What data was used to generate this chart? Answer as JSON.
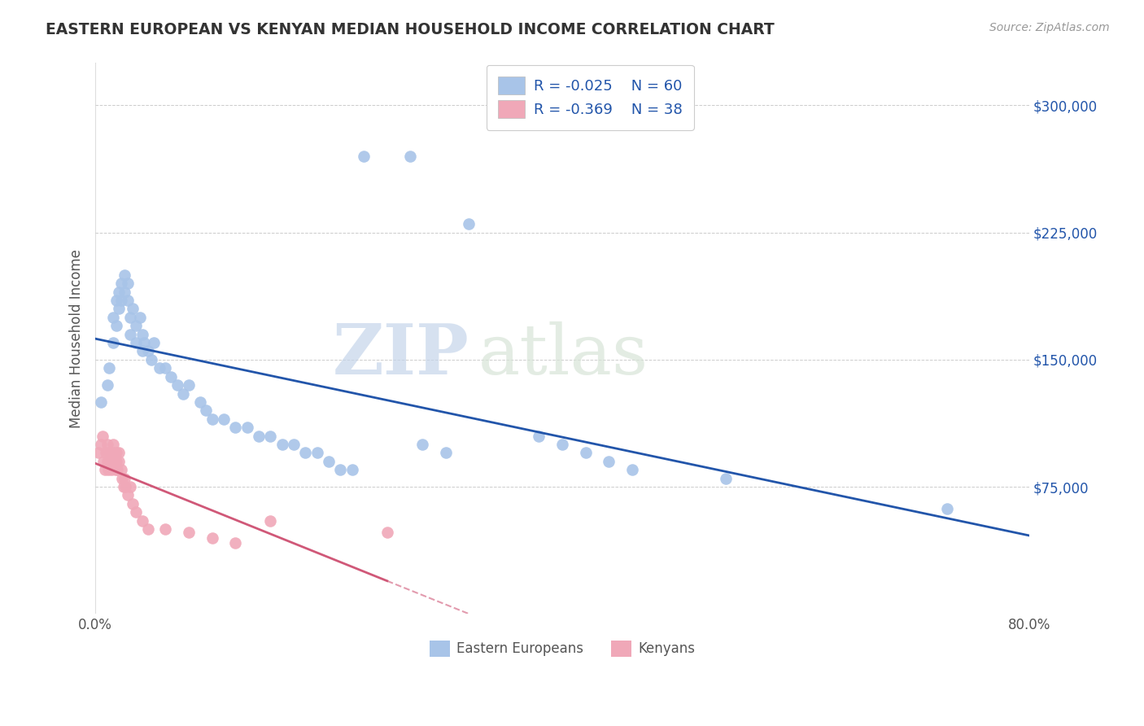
{
  "title": "EASTERN EUROPEAN VS KENYAN MEDIAN HOUSEHOLD INCOME CORRELATION CHART",
  "source": "Source: ZipAtlas.com",
  "ylabel": "Median Household Income",
  "xlim": [
    0.0,
    0.8
  ],
  "ylim": [
    0,
    325000
  ],
  "yticks": [
    0,
    75000,
    150000,
    225000,
    300000
  ],
  "ytick_labels": [
    "",
    "$75,000",
    "$150,000",
    "$225,000",
    "$300,000"
  ],
  "xticks": [
    0.0,
    0.8
  ],
  "xtick_labels": [
    "0.0%",
    "80.0%"
  ],
  "legend_r1": "R = -0.025",
  "legend_n1": "N = 60",
  "legend_r2": "R = -0.369",
  "legend_n2": "N = 38",
  "legend_label1": "Eastern Europeans",
  "legend_label2": "Kenyans",
  "watermark_zip": "ZIP",
  "watermark_atlas": "atlas",
  "blue_color": "#a8c4e8",
  "pink_color": "#f0a8b8",
  "line_blue": "#2255aa",
  "line_pink": "#d05878",
  "background": "#ffffff",
  "grid_color": "#cccccc",
  "text_color": "#555555",
  "blue_text_color": "#2255aa",
  "blue_scatter": [
    [
      0.005,
      125000
    ],
    [
      0.01,
      135000
    ],
    [
      0.012,
      145000
    ],
    [
      0.015,
      160000
    ],
    [
      0.015,
      175000
    ],
    [
      0.018,
      185000
    ],
    [
      0.018,
      170000
    ],
    [
      0.02,
      190000
    ],
    [
      0.02,
      180000
    ],
    [
      0.022,
      195000
    ],
    [
      0.022,
      185000
    ],
    [
      0.025,
      200000
    ],
    [
      0.025,
      190000
    ],
    [
      0.028,
      195000
    ],
    [
      0.028,
      185000
    ],
    [
      0.03,
      175000
    ],
    [
      0.03,
      165000
    ],
    [
      0.032,
      180000
    ],
    [
      0.035,
      170000
    ],
    [
      0.035,
      160000
    ],
    [
      0.038,
      175000
    ],
    [
      0.04,
      165000
    ],
    [
      0.04,
      155000
    ],
    [
      0.042,
      160000
    ],
    [
      0.045,
      155000
    ],
    [
      0.048,
      150000
    ],
    [
      0.05,
      160000
    ],
    [
      0.055,
      145000
    ],
    [
      0.06,
      145000
    ],
    [
      0.065,
      140000
    ],
    [
      0.07,
      135000
    ],
    [
      0.075,
      130000
    ],
    [
      0.08,
      135000
    ],
    [
      0.09,
      125000
    ],
    [
      0.095,
      120000
    ],
    [
      0.1,
      115000
    ],
    [
      0.11,
      115000
    ],
    [
      0.12,
      110000
    ],
    [
      0.13,
      110000
    ],
    [
      0.14,
      105000
    ],
    [
      0.15,
      105000
    ],
    [
      0.16,
      100000
    ],
    [
      0.17,
      100000
    ],
    [
      0.18,
      95000
    ],
    [
      0.19,
      95000
    ],
    [
      0.2,
      90000
    ],
    [
      0.21,
      85000
    ],
    [
      0.22,
      85000
    ],
    [
      0.28,
      100000
    ],
    [
      0.3,
      95000
    ],
    [
      0.23,
      270000
    ],
    [
      0.27,
      270000
    ],
    [
      0.32,
      230000
    ],
    [
      0.38,
      105000
    ],
    [
      0.4,
      100000
    ],
    [
      0.42,
      95000
    ],
    [
      0.44,
      90000
    ],
    [
      0.46,
      85000
    ],
    [
      0.54,
      80000
    ],
    [
      0.73,
      62000
    ]
  ],
  "pink_scatter": [
    [
      0.003,
      95000
    ],
    [
      0.005,
      100000
    ],
    [
      0.006,
      105000
    ],
    [
      0.007,
      90000
    ],
    [
      0.008,
      85000
    ],
    [
      0.009,
      95000
    ],
    [
      0.01,
      100000
    ],
    [
      0.01,
      90000
    ],
    [
      0.011,
      85000
    ],
    [
      0.012,
      95000
    ],
    [
      0.013,
      90000
    ],
    [
      0.014,
      85000
    ],
    [
      0.015,
      100000
    ],
    [
      0.015,
      95000
    ],
    [
      0.016,
      90000
    ],
    [
      0.017,
      85000
    ],
    [
      0.018,
      95000
    ],
    [
      0.018,
      90000
    ],
    [
      0.019,
      85000
    ],
    [
      0.02,
      95000
    ],
    [
      0.02,
      90000
    ],
    [
      0.022,
      85000
    ],
    [
      0.023,
      80000
    ],
    [
      0.024,
      75000
    ],
    [
      0.025,
      80000
    ],
    [
      0.026,
      75000
    ],
    [
      0.028,
      70000
    ],
    [
      0.03,
      75000
    ],
    [
      0.032,
      65000
    ],
    [
      0.035,
      60000
    ],
    [
      0.04,
      55000
    ],
    [
      0.045,
      50000
    ],
    [
      0.06,
      50000
    ],
    [
      0.08,
      48000
    ],
    [
      0.1,
      45000
    ],
    [
      0.12,
      42000
    ],
    [
      0.15,
      55000
    ],
    [
      0.25,
      48000
    ]
  ]
}
